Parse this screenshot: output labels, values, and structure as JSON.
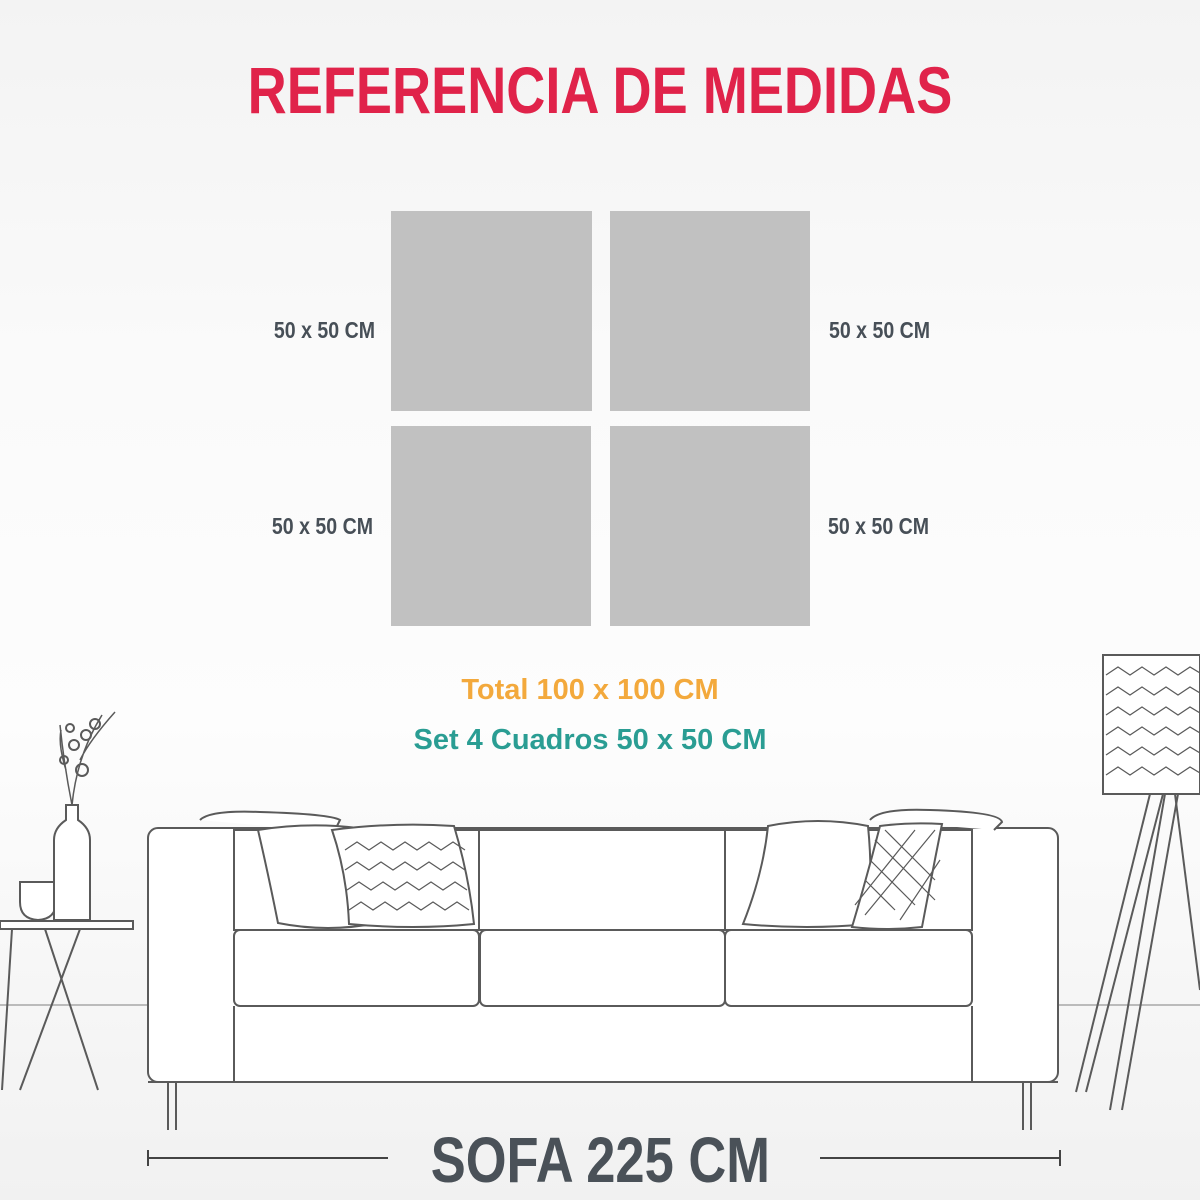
{
  "title": "REFERENCIA DE MEDIDAS",
  "panels": [
    {
      "label": "50 x 50 CM"
    },
    {
      "label": "50 x 50 CM"
    },
    {
      "label": "50 x 50 CM"
    },
    {
      "label": "50 x 50 CM"
    }
  ],
  "panel_color": "#c1c1c1",
  "total_text": "Total 100 x 100 CM",
  "set_text": "Set 4 Cuadros 50 x 50 CM",
  "sofa_text": "SOFA 225 CM",
  "colors": {
    "title": "#e0234a",
    "total": "#f3a93c",
    "set": "#2a9d93",
    "labels": "#474f57"
  }
}
